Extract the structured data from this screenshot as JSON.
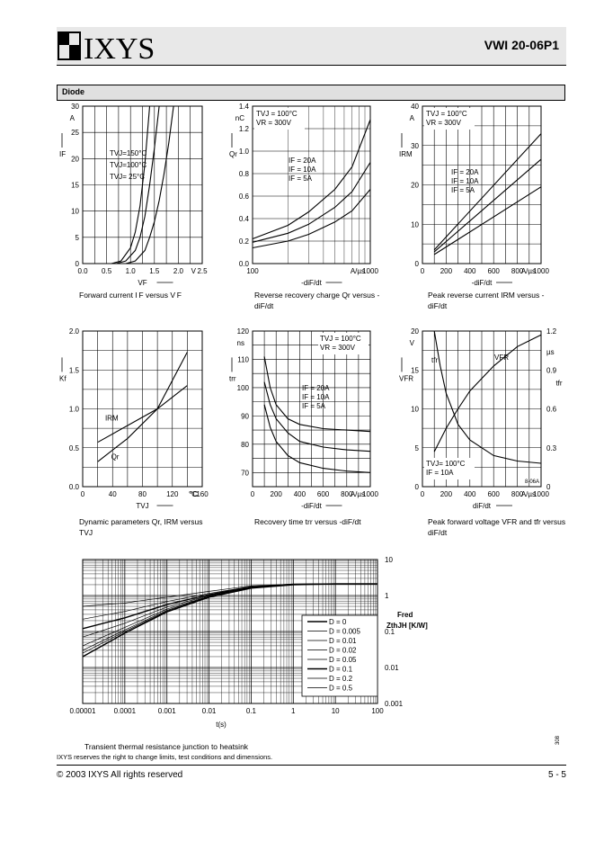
{
  "header": {
    "logo_text": "IXYS",
    "part_number": "VWI 20-06P1"
  },
  "section": {
    "title": "Diode"
  },
  "chart_data": [
    {
      "id": "c1",
      "type": "line",
      "caption": "Forward current I F versus V F",
      "xlabel": "VF",
      "ylabel": "IF",
      "yunit": "A",
      "xunit": "V",
      "xlim": [
        0,
        2.5
      ],
      "ylim": [
        0,
        30
      ],
      "xticks": [
        "0.0",
        "0.5",
        "1.0",
        "1.5",
        "2.0",
        "2.5"
      ],
      "yticks": [
        "0",
        "5",
        "10",
        "15",
        "20",
        "25",
        "30"
      ],
      "legend": [
        "TVJ=150°C",
        "TVJ=100°C",
        "TVJ= 25°C"
      ],
      "series": [
        {
          "name": "TVJ=150°C",
          "x": [
            0.6,
            0.8,
            1.0,
            1.1,
            1.2,
            1.3,
            1.4
          ],
          "y": [
            0,
            0.5,
            3,
            6,
            11,
            19,
            30
          ]
        },
        {
          "name": "TVJ=100°C",
          "x": [
            0.7,
            0.9,
            1.1,
            1.2,
            1.3,
            1.4,
            1.5,
            1.6
          ],
          "y": [
            0,
            0.5,
            2.5,
            5,
            9,
            15,
            22,
            30
          ]
        },
        {
          "name": "TVJ= 25°C",
          "x": [
            0.9,
            1.1,
            1.3,
            1.4,
            1.5,
            1.6,
            1.7,
            1.8,
            1.9
          ],
          "y": [
            0,
            0.5,
            2.5,
            5,
            8,
            12,
            17,
            23,
            30
          ]
        }
      ]
    },
    {
      "id": "c2",
      "type": "line",
      "caption": "Reverse recovery charge Qr versus -diF/dt",
      "xlabel": "-diF/dt",
      "ylabel": "Qr",
      "yunit": "nC",
      "xunit": "A/µs",
      "xscale": "log",
      "xlim": [
        100,
        1000
      ],
      "ylim": [
        0,
        1.4
      ],
      "xticks": [
        "100",
        "1000"
      ],
      "yticks": [
        "0.0",
        "0.2",
        "0.4",
        "0.6",
        "0.8",
        "1.0",
        "1.2",
        "1.4"
      ],
      "conditions": [
        "TVJ = 100°C",
        "VR = 300V"
      ],
      "legend": [
        "IF = 20A",
        "IF = 10A",
        "IF = 5A"
      ],
      "series": [
        {
          "name": "IF = 20A",
          "x": [
            100,
            200,
            300,
            500,
            700,
            1000
          ],
          "y": [
            0.22,
            0.34,
            0.46,
            0.66,
            0.86,
            1.28
          ]
        },
        {
          "name": "IF = 10A",
          "x": [
            100,
            200,
            300,
            500,
            700,
            1000
          ],
          "y": [
            0.19,
            0.27,
            0.35,
            0.5,
            0.64,
            0.9
          ]
        },
        {
          "name": "IF = 5A",
          "x": [
            100,
            200,
            300,
            500,
            700,
            1000
          ],
          "y": [
            0.14,
            0.2,
            0.26,
            0.37,
            0.47,
            0.66
          ]
        }
      ]
    },
    {
      "id": "c3",
      "type": "line",
      "caption": "Peak reverse current IRM versus -diF/dt",
      "xlabel": "-diF/dt",
      "ylabel": "IRM",
      "yunit": "A",
      "xunit": "A/µs",
      "xlim": [
        0,
        1000
      ],
      "ylim": [
        0,
        40
      ],
      "xticks": [
        "0",
        "200",
        "400",
        "600",
        "800",
        "1000"
      ],
      "yticks": [
        "0",
        "10",
        "20",
        "30",
        "40"
      ],
      "conditions": [
        "TVJ = 100°C",
        "VR = 300V"
      ],
      "legend": [
        "IF = 20A",
        "IF = 10A",
        "IF = 5A"
      ],
      "series": [
        {
          "name": "IF = 20A",
          "x": [
            100,
            1000
          ],
          "y": [
            3.5,
            33
          ]
        },
        {
          "name": "IF = 10A",
          "x": [
            100,
            1000
          ],
          "y": [
            3,
            26.5
          ]
        },
        {
          "name": "IF = 5A",
          "x": [
            100,
            1000
          ],
          "y": [
            2.3,
            19.5
          ]
        }
      ]
    },
    {
      "id": "c4",
      "type": "line",
      "caption": "Dynamic parameters Qr, IRM versus TVJ",
      "xlabel": "TVJ",
      "ylabel": "Kf",
      "xunit": "°C",
      "xlim": [
        0,
        160
      ],
      "ylim": [
        0,
        2.0
      ],
      "xticks": [
        "0",
        "40",
        "80",
        "120",
        "160"
      ],
      "yticks": [
        "0.0",
        "0.5",
        "1.0",
        "1.5",
        "2.0"
      ],
      "legend": [
        "IRM",
        "Qr"
      ],
      "series": [
        {
          "name": "IRM",
          "x": [
            20,
            100,
            140
          ],
          "y": [
            0.57,
            1.0,
            1.3
          ]
        },
        {
          "name": "Qr",
          "x": [
            20,
            60,
            100,
            140
          ],
          "y": [
            0.32,
            0.62,
            1.0,
            1.73
          ]
        }
      ]
    },
    {
      "id": "c5",
      "type": "line",
      "caption": "Recovery time trr versus -diF/dt",
      "xlabel": "-diF/dt",
      "ylabel": "trr",
      "yunit": "ns",
      "xunit": "A/µs",
      "xlim": [
        0,
        1000
      ],
      "ylim": [
        65,
        120
      ],
      "xticks": [
        "0",
        "200",
        "400",
        "600",
        "800",
        "1000"
      ],
      "yticks": [
        "70",
        "80",
        "90",
        "100",
        "110",
        "120"
      ],
      "conditions": [
        "TVJ = 100°C",
        "VR = 300V"
      ],
      "legend": [
        "IF = 20A",
        "IF = 10A",
        "IF = 5A"
      ],
      "series": [
        {
          "name": "IF = 20A",
          "x": [
            100,
            150,
            200,
            300,
            400,
            600,
            800,
            1000
          ],
          "y": [
            111,
            100,
            94,
            89,
            87,
            85.5,
            85,
            84.5
          ]
        },
        {
          "name": "IF = 10A",
          "x": [
            100,
            150,
            200,
            300,
            400,
            600,
            800,
            1000
          ],
          "y": [
            102,
            94,
            89,
            84,
            81,
            79,
            78,
            77.5
          ]
        },
        {
          "name": "IF = 5A",
          "x": [
            100,
            150,
            200,
            300,
            400,
            600,
            800,
            1000
          ],
          "y": [
            94,
            86,
            81,
            76,
            73.5,
            71.5,
            70.5,
            70
          ]
        }
      ]
    },
    {
      "id": "c6",
      "type": "line",
      "caption": "Peak forward voltage VFR and tfr versus diF/dt",
      "xlabel": "diF/dt",
      "ylabel": "VFR",
      "yunit": "V",
      "y2label": "tfr",
      "y2unit": "µs",
      "xunit": "A/µs",
      "xlim": [
        0,
        1000
      ],
      "ylim": [
        0,
        20
      ],
      "y2lim": [
        0,
        1.2
      ],
      "xticks": [
        "0",
        "200",
        "400",
        "600",
        "800",
        "1000"
      ],
      "yticks": [
        "0",
        "5",
        "10",
        "15",
        "20"
      ],
      "y2ticks": [
        "0",
        "0.3",
        "0.6",
        "0.9",
        "1.2"
      ],
      "conditions": [
        "TVJ= 100°C",
        "IF = 10A"
      ],
      "code": "8-06A",
      "legend": [
        "tfr",
        "VFR"
      ],
      "series": [
        {
          "name": "tfr",
          "x": [
            100,
            150,
            200,
            300,
            400,
            600,
            800,
            1000
          ],
          "y": [
            20,
            15.5,
            12,
            8,
            6,
            4,
            3.3,
            3
          ]
        },
        {
          "name": "VFR",
          "x": [
            100,
            200,
            300,
            400,
            600,
            800,
            1000
          ],
          "y": [
            4.5,
            7.5,
            10,
            12.3,
            15.5,
            18,
            19.5
          ]
        }
      ]
    },
    {
      "id": "c7",
      "type": "line",
      "caption": "Transient thermal resistance junction to heatsink",
      "xlabel": "t(s)",
      "ylabel": "ZthJH [K/W]",
      "title_right": "Fred",
      "xscale": "log",
      "yscale": "log",
      "xlim": [
        1e-05,
        100
      ],
      "ylim": [
        0.001,
        10
      ],
      "xticks": [
        "0.00001",
        "0.0001",
        "0.001",
        "0.01",
        "0.1",
        "1",
        "10",
        "100"
      ],
      "yticks": [
        "0.001",
        "0.01",
        "0.1",
        "1",
        "10"
      ],
      "legend": [
        "D = 0",
        "D = 0.005",
        "D = 0.01",
        "D = 0.02",
        "D = 0.05",
        "D = 0.1",
        "D = 0.2",
        "D = 0.5"
      ],
      "series": [
        {
          "name": "D = 0",
          "x": [
            1e-05,
            0.0001,
            0.001,
            0.01,
            0.1,
            1,
            10,
            100
          ],
          "y": [
            0.02,
            0.09,
            0.35,
            0.9,
            1.6,
            2.0,
            2.1,
            2.1
          ]
        },
        {
          "name": "D = 0.005",
          "x": [
            1e-05,
            0.0001,
            0.001,
            0.01,
            0.1,
            1,
            10,
            100
          ],
          "y": [
            0.025,
            0.1,
            0.37,
            0.92,
            1.62,
            2.02,
            2.1,
            2.1
          ]
        },
        {
          "name": "D = 0.01",
          "x": [
            1e-05,
            0.0001,
            0.001,
            0.01,
            0.1,
            1,
            10,
            100
          ],
          "y": [
            0.03,
            0.11,
            0.39,
            0.94,
            1.64,
            2.03,
            2.1,
            2.1
          ]
        },
        {
          "name": "D = 0.02",
          "x": [
            1e-05,
            0.0001,
            0.001,
            0.01,
            0.1,
            1,
            10,
            100
          ],
          "y": [
            0.04,
            0.13,
            0.42,
            0.96,
            1.66,
            2.04,
            2.1,
            2.1
          ]
        },
        {
          "name": "D = 0.05",
          "x": [
            1e-05,
            0.0001,
            0.001,
            0.01,
            0.1,
            1,
            10,
            100
          ],
          "y": [
            0.07,
            0.17,
            0.48,
            1.0,
            1.7,
            2.05,
            2.1,
            2.1
          ]
        },
        {
          "name": "D = 0.1",
          "x": [
            1e-05,
            0.0001,
            0.001,
            0.01,
            0.1,
            1,
            10,
            100
          ],
          "y": [
            0.12,
            0.24,
            0.56,
            1.06,
            1.74,
            2.06,
            2.1,
            2.1
          ]
        },
        {
          "name": "D = 0.2",
          "x": [
            1e-05,
            0.0001,
            0.001,
            0.01,
            0.1,
            1,
            10,
            100
          ],
          "y": [
            0.22,
            0.36,
            0.68,
            1.14,
            1.78,
            2.07,
            2.1,
            2.1
          ]
        },
        {
          "name": "D = 0.5",
          "x": [
            1e-05,
            0.0001,
            0.001,
            0.01,
            0.1,
            1,
            10,
            100
          ],
          "y": [
            0.5,
            0.62,
            0.9,
            1.3,
            1.86,
            2.08,
            2.1,
            2.1
          ]
        }
      ]
    }
  ],
  "footer": {
    "note": "IXYS reserves the right to change limits, test conditions and dimensions.",
    "copyright": "© 2003 IXYS All rights reserved",
    "page": "5 - 5",
    "side_code": "308"
  }
}
